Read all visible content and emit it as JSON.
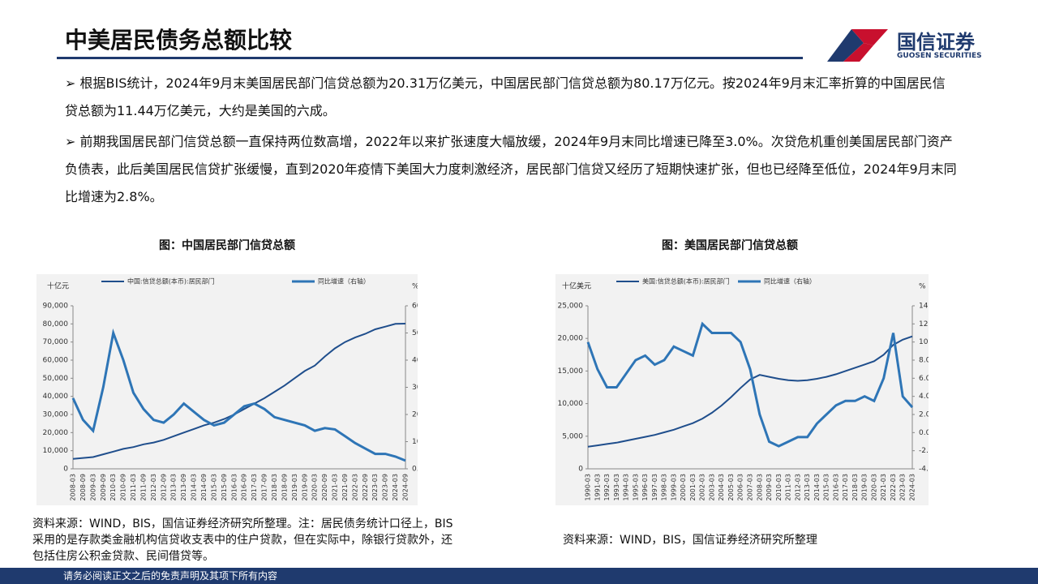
{
  "header": {
    "title": "中美居民债务总额比较",
    "logo_cn": "国信证券",
    "logo_en": "GUOSEN SECURITIES"
  },
  "bullets": [
    "➢ 根据BIS统计，2024年9月末美国居民部门信贷总额为20.31万亿美元，中国居民部门信贷总额为80.17万亿元。按2024年9月末汇率折算的中国居民信贷总额为11.44万亿美元，大约是美国的六成。",
    "➢ 前期我国居民部门信贷总额一直保持两位数高增，2022年以来扩张速度大幅放缓，2024年9月末同比增速已降至3.0%。次贷危机重创美国居民部门资产负债表，此后美国居民信贷扩张缓慢，直到2020年疫情下美国大力度刺激经济，居民部门信贷又经历了短期快速扩张，但也已经降至低位，2024年9月末同比增速为2.8%。"
  ],
  "chart_data": [
    {
      "type": "line",
      "title": "图：中国居民部门信贷总额",
      "y_label": "十亿元",
      "y2_label": "%",
      "categories": [
        "2008-03",
        "2008-09",
        "2009-03",
        "2009-09",
        "2010-03",
        "2010-09",
        "2011-03",
        "2011-09",
        "2012-03",
        "2012-09",
        "2013-03",
        "2013-09",
        "2014-03",
        "2014-09",
        "2015-03",
        "2015-09",
        "2016-03",
        "2016-09",
        "2017-03",
        "2017-09",
        "2018-03",
        "2018-09",
        "2019-03",
        "2019-09",
        "2020-03",
        "2020-09",
        "2021-03",
        "2021-09",
        "2022-03",
        "2022-09",
        "2023-03",
        "2023-09",
        "2024-03",
        "2024-09"
      ],
      "series": [
        {
          "name": "中国:信贷总额(本币):居民部门",
          "color": "#1f4e8c",
          "values": [
            5500,
            6000,
            6500,
            8000,
            9500,
            11000,
            12000,
            13500,
            14500,
            16000,
            18000,
            20000,
            22000,
            24000,
            25500,
            27500,
            30000,
            33000,
            36000,
            39000,
            42500,
            46000,
            50000,
            54000,
            57000,
            62000,
            66500,
            70000,
            72500,
            74500,
            77000,
            78500,
            80000,
            80170
          ]
        },
        {
          "name": "同比增速（右轴）",
          "color": "#2e75b6",
          "axis": "y2",
          "values": [
            26,
            18,
            14,
            30,
            50,
            40,
            28,
            22,
            18,
            17,
            20,
            24,
            21,
            18,
            16,
            17,
            20,
            23,
            24,
            22,
            19,
            18,
            17,
            16,
            14,
            15,
            14.5,
            12,
            9.5,
            7.5,
            5.5,
            5.5,
            4.5,
            3.0
          ]
        }
      ],
      "ylim": [
        0,
        90000
      ],
      "yticks": [
        0,
        {
          "value": 10000,
          "label": "10,000"
        },
        {
          "value": 20000,
          "label": "20,000"
        },
        {
          "value": 30000,
          "label": "30,000"
        },
        {
          "value": 40000,
          "label": "40,000"
        },
        {
          "value": 50000,
          "label": "50,000"
        },
        {
          "value": 60000,
          "label": "60,000"
        },
        {
          "value": 70000,
          "label": "70,000"
        },
        {
          "value": 80000,
          "label": "80,000"
        },
        {
          "value": 90000,
          "label": "90,000"
        }
      ],
      "y2lim": [
        0,
        60
      ],
      "y2ticks": [
        {
          "value": 0,
          "label": "0.00"
        },
        {
          "value": 10,
          "label": "10.00"
        },
        {
          "value": 20,
          "label": "20.00"
        },
        {
          "value": 30,
          "label": "30.00"
        },
        {
          "value": 40,
          "label": "40.00"
        },
        {
          "value": 50,
          "label": "50.00"
        },
        {
          "value": 60,
          "label": "60.00"
        }
      ]
    },
    {
      "type": "line",
      "title": "图：美国居民部门信贷总额",
      "y_label": "十亿美元",
      "y2_label": "%",
      "categories": [
        "1990-03",
        "1991-03",
        "1992-03",
        "1993-03",
        "1994-03",
        "1995-03",
        "1996-03",
        "1997-03",
        "1998-03",
        "1999-03",
        "2000-03",
        "2001-03",
        "2002-03",
        "2003-03",
        "2004-03",
        "2005-03",
        "2006-03",
        "2007-03",
        "2008-03",
        "2009-03",
        "2010-03",
        "2011-03",
        "2012-03",
        "2013-03",
        "2014-03",
        "2015-03",
        "2016-03",
        "2017-03",
        "2018-03",
        "2019-03",
        "2020-03",
        "2021-03",
        "2022-03",
        "2023-03",
        "2024-03"
      ],
      "series": [
        {
          "name": "美国:信贷总额(本币):居民部门",
          "color": "#1f4e8c",
          "values": [
            3400,
            3600,
            3800,
            4000,
            4300,
            4600,
            4900,
            5200,
            5600,
            6000,
            6500,
            7000,
            7700,
            8600,
            9700,
            11000,
            12400,
            13700,
            14400,
            14100,
            13800,
            13600,
            13500,
            13600,
            13800,
            14100,
            14500,
            15000,
            15500,
            16000,
            16500,
            17500,
            19000,
            19800,
            20310
          ]
        },
        {
          "name": "同比增速（右轴）",
          "color": "#2e75b6",
          "axis": "y2",
          "values": [
            10,
            7,
            5,
            5,
            6.5,
            8,
            8.5,
            7.5,
            8,
            9.5,
            9,
            8.5,
            12,
            11,
            11,
            11,
            10,
            7,
            2,
            -1,
            -1.5,
            -1,
            -0.5,
            -0.5,
            1,
            2,
            3,
            3.5,
            3.5,
            4,
            3.5,
            6,
            11,
            4,
            2.8
          ]
        }
      ],
      "ylim": [
        0,
        25000
      ],
      "yticks": [
        0,
        {
          "value": 5000,
          "label": "5,000"
        },
        {
          "value": 10000,
          "label": "10,000"
        },
        {
          "value": 15000,
          "label": "15,000"
        },
        {
          "value": 20000,
          "label": "20,000"
        },
        {
          "value": 25000,
          "label": "25,000"
        }
      ],
      "y2lim": [
        -4,
        14
      ],
      "y2ticks": [
        {
          "value": -4,
          "label": "-4.00"
        },
        {
          "value": -2,
          "label": "-2.00"
        },
        {
          "value": 0,
          "label": "0.00"
        },
        {
          "value": 2,
          "label": "2.00"
        },
        {
          "value": 4,
          "label": "4.00"
        },
        {
          "value": 6,
          "label": "6.00"
        },
        {
          "value": 8,
          "label": "8.00"
        },
        {
          "value": 10,
          "label": "10.00"
        },
        {
          "value": 12,
          "label": "12.00"
        },
        {
          "value": 14,
          "label": "14.00"
        }
      ]
    }
  ],
  "sources": [
    "资料来源：WIND，BIS，国信证券经济研究所整理。注：居民债务统计口径上，BIS采用的是存款类金融机构信贷收支表中的住户贷款，但在实际中，除银行贷款外，还包括住房公积金贷款、民间借贷等。",
    "资料来源：WIND，BIS，国信证券经济研究所整理"
  ],
  "footer": "请务必阅读正文之后的免责声明及其项下所有内容"
}
